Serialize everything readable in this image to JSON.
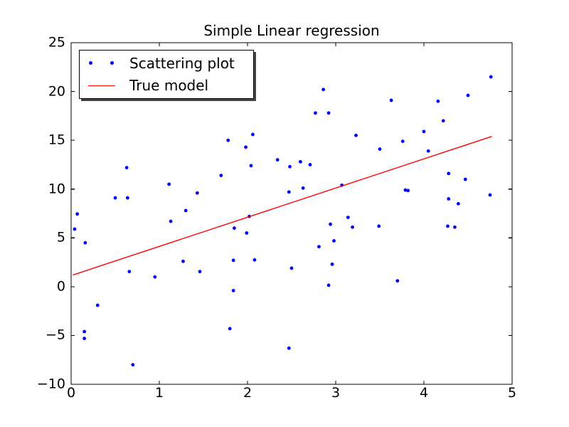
{
  "figure": {
    "title": "Simple Linear regression",
    "background": "#ffffff",
    "axes_color": "#000000"
  },
  "legend": {
    "position": "upper left",
    "shadow": true,
    "entries": [
      {
        "label": "Scattering plot",
        "marker": "dot",
        "color": "#0000ff"
      },
      {
        "label": "True model",
        "marker": "line",
        "color": "#ff0000"
      }
    ]
  },
  "chart_data": {
    "type": "scatter",
    "title": "Simple Linear regression",
    "xlabel": "",
    "ylabel": "",
    "xlim": [
      0,
      5
    ],
    "ylim": [
      -10,
      25
    ],
    "xticks": [
      0,
      1,
      2,
      3,
      4,
      5
    ],
    "yticks": [
      25,
      20,
      15,
      10,
      5,
      0,
      -5,
      -10
    ],
    "grid": false,
    "legend_position": "upper left",
    "series": [
      {
        "name": "Scattering plot",
        "type": "scatter",
        "color": "#0000ff",
        "marker_size": 5,
        "points": [
          [
            0.04,
            5.9
          ],
          [
            0.07,
            7.45
          ],
          [
            0.15,
            -4.6
          ],
          [
            0.15,
            -5.3
          ],
          [
            0.16,
            4.5
          ],
          [
            0.3,
            -1.9
          ],
          [
            0.5,
            9.1
          ],
          [
            0.63,
            12.2
          ],
          [
            0.64,
            9.1
          ],
          [
            0.66,
            1.55
          ],
          [
            0.7,
            -8.0
          ],
          [
            0.95,
            1.0
          ],
          [
            1.11,
            10.5
          ],
          [
            1.13,
            6.7
          ],
          [
            1.27,
            2.6
          ],
          [
            1.3,
            7.8
          ],
          [
            1.43,
            9.6
          ],
          [
            1.46,
            1.55
          ],
          [
            1.7,
            11.4
          ],
          [
            1.78,
            15.0
          ],
          [
            1.8,
            -4.3
          ],
          [
            1.84,
            -0.4
          ],
          [
            1.84,
            2.7
          ],
          [
            1.85,
            6.0
          ],
          [
            1.98,
            14.3
          ],
          [
            1.99,
            5.5
          ],
          [
            2.02,
            7.2
          ],
          [
            2.04,
            12.4
          ],
          [
            2.06,
            15.6
          ],
          [
            2.08,
            2.75
          ],
          [
            2.34,
            13.0
          ],
          [
            2.47,
            -6.3
          ],
          [
            2.47,
            9.7
          ],
          [
            2.48,
            12.3
          ],
          [
            2.5,
            1.9
          ],
          [
            2.6,
            12.8
          ],
          [
            2.63,
            10.1
          ],
          [
            2.71,
            12.5
          ],
          [
            2.77,
            17.8
          ],
          [
            2.81,
            4.1
          ],
          [
            2.86,
            20.2
          ],
          [
            2.92,
            0.15
          ],
          [
            2.92,
            17.8
          ],
          [
            2.94,
            6.4
          ],
          [
            2.96,
            2.3
          ],
          [
            2.98,
            4.7
          ],
          [
            3.07,
            10.4
          ],
          [
            3.14,
            7.1
          ],
          [
            3.19,
            6.1
          ],
          [
            3.23,
            15.5
          ],
          [
            3.49,
            6.2
          ],
          [
            3.5,
            14.1
          ],
          [
            3.63,
            19.1
          ],
          [
            3.7,
            0.6
          ],
          [
            3.76,
            14.9
          ],
          [
            3.79,
            9.9
          ],
          [
            3.82,
            9.85
          ],
          [
            4.0,
            15.9
          ],
          [
            4.05,
            13.9
          ],
          [
            4.16,
            19.0
          ],
          [
            4.22,
            17.0
          ],
          [
            4.27,
            6.2
          ],
          [
            4.28,
            9.0
          ],
          [
            4.28,
            11.6
          ],
          [
            4.35,
            6.1
          ],
          [
            4.39,
            8.5
          ],
          [
            4.47,
            11.0
          ],
          [
            4.5,
            19.6
          ],
          [
            4.75,
            9.4
          ],
          [
            4.76,
            21.5
          ]
        ]
      },
      {
        "name": "True model",
        "type": "line",
        "color": "#ff0000",
        "points": [
          [
            0.02,
            1.2
          ],
          [
            4.77,
            15.4
          ]
        ]
      }
    ]
  }
}
